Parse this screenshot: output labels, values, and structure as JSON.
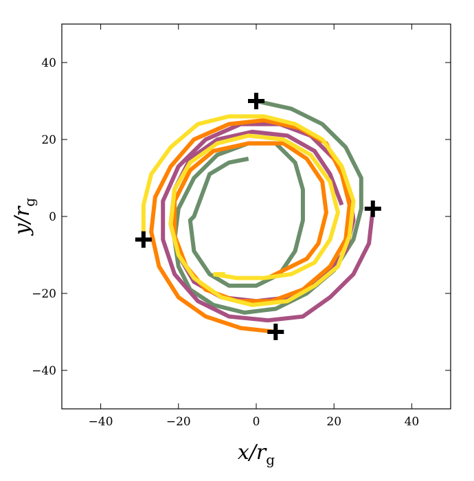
{
  "chart_data": {
    "type": "line",
    "xlabel": {
      "main": "x/r",
      "sub": "g"
    },
    "ylabel": {
      "main": "y/r",
      "sub": "g"
    },
    "xlim": [
      -50,
      50
    ],
    "ylim": [
      -50,
      50
    ],
    "xticks": [
      -40,
      -20,
      0,
      20,
      40
    ],
    "yticks": [
      -40,
      -20,
      0,
      20,
      40
    ],
    "tick_labels": {
      "x": [
        "−40",
        "−20",
        "0",
        "20",
        "40"
      ],
      "y": [
        "−40",
        "−20",
        "0",
        "20",
        "40"
      ]
    },
    "grid": false,
    "legend": false,
    "series": [
      {
        "color": "#6b8e6b",
        "points": [
          [
            0,
            30
          ],
          [
            9,
            28
          ],
          [
            17,
            24
          ],
          [
            23,
            18
          ],
          [
            27,
            10
          ],
          [
            27,
            2
          ],
          [
            25,
            -6
          ],
          [
            20,
            -14
          ],
          [
            13,
            -20
          ],
          [
            5,
            -24
          ],
          [
            -3,
            -25
          ],
          [
            -11,
            -23
          ],
          [
            -17,
            -19
          ],
          [
            -20,
            -13
          ],
          [
            -21,
            -6
          ],
          [
            -20,
            2
          ],
          [
            -16,
            10
          ],
          [
            -10,
            16
          ],
          [
            -2,
            19
          ],
          [
            5,
            19
          ],
          [
            10,
            14
          ],
          [
            12,
            7
          ],
          [
            12,
            -1
          ],
          [
            10,
            -9
          ],
          [
            6,
            -15
          ],
          [
            0,
            -18
          ],
          [
            -7,
            -18
          ],
          [
            -12,
            -15
          ],
          [
            -16,
            -9
          ],
          [
            -17,
            -1
          ],
          [
            -16,
            0
          ],
          [
            -12,
            11
          ],
          [
            -7,
            14
          ],
          [
            -2,
            15
          ]
        ]
      },
      {
        "color": "#a85182",
        "points": [
          [
            30,
            2
          ],
          [
            29,
            -7
          ],
          [
            25,
            -15
          ],
          [
            19,
            -21
          ],
          [
            12,
            -26
          ],
          [
            3,
            -27
          ],
          [
            -7,
            -26
          ],
          [
            -15,
            -22
          ],
          [
            -21,
            -15
          ],
          [
            -24,
            -6
          ],
          [
            -24,
            4
          ],
          [
            -20,
            13
          ],
          [
            -13,
            20
          ],
          [
            -4,
            24
          ],
          [
            6,
            24
          ],
          [
            14,
            21
          ],
          [
            20,
            15
          ],
          [
            24,
            7
          ],
          [
            25,
            -1
          ],
          [
            23,
            -9
          ],
          [
            17,
            -16
          ],
          [
            9,
            -21
          ],
          [
            0,
            -22
          ],
          [
            -9,
            -21
          ],
          [
            -16,
            -17
          ],
          [
            -20,
            -10
          ],
          [
            -22,
            -2
          ],
          [
            -21,
            7
          ],
          [
            -17,
            15
          ],
          [
            -10,
            20
          ],
          [
            -1,
            22
          ],
          [
            8,
            21
          ],
          [
            15,
            17
          ],
          [
            19,
            11
          ],
          [
            22,
            3
          ]
        ]
      },
      {
        "color": "#ff8200",
        "points": [
          [
            5,
            -30
          ],
          [
            -4,
            -29
          ],
          [
            -13,
            -26
          ],
          [
            -20,
            -21
          ],
          [
            -25,
            -13
          ],
          [
            -27,
            -4
          ],
          [
            -26,
            5
          ],
          [
            -22,
            13
          ],
          [
            -16,
            20
          ],
          [
            -7,
            24
          ],
          [
            2,
            25
          ],
          [
            11,
            23
          ],
          [
            18,
            19
          ],
          [
            22,
            11
          ],
          [
            24,
            3
          ],
          [
            23,
            -6
          ],
          [
            19,
            -13
          ],
          [
            12,
            -19
          ],
          [
            4,
            -22
          ],
          [
            -5,
            -22
          ],
          [
            -13,
            -19
          ],
          [
            -18,
            -13
          ],
          [
            -21,
            -5
          ],
          [
            -21,
            4
          ],
          [
            -17,
            12
          ],
          [
            -11,
            17
          ],
          [
            -2,
            19
          ],
          [
            7,
            19
          ],
          [
            13,
            15
          ],
          [
            17,
            9
          ],
          [
            18,
            1
          ],
          [
            16,
            -7
          ],
          [
            13,
            -11
          ],
          [
            3,
            -16
          ]
        ]
      },
      {
        "color": "#fde02a",
        "points": [
          [
            -29,
            -6
          ],
          [
            -29,
            3
          ],
          [
            -27,
            11
          ],
          [
            -22,
            18
          ],
          [
            -15,
            24
          ],
          [
            -7,
            26
          ],
          [
            2,
            26
          ],
          [
            10,
            24
          ],
          [
            17,
            20
          ],
          [
            22,
            13
          ],
          [
            25,
            4
          ],
          [
            24,
            -5
          ],
          [
            21,
            -13
          ],
          [
            15,
            -18
          ],
          [
            8,
            -22
          ],
          [
            -1,
            -23
          ],
          [
            -9,
            -21
          ],
          [
            -16,
            -16
          ],
          [
            -20,
            -10
          ],
          [
            -22,
            -2
          ],
          [
            -21,
            7
          ],
          [
            -17,
            14
          ],
          [
            -10,
            19
          ],
          [
            -2,
            21
          ],
          [
            7,
            20
          ],
          [
            14,
            16
          ],
          [
            19,
            9
          ],
          [
            21,
            1
          ],
          [
            19,
            -6
          ],
          [
            15,
            -12
          ],
          [
            9,
            -15
          ],
          [
            2,
            -16
          ],
          [
            -5,
            -16
          ],
          [
            -11,
            -15
          ],
          [
            -8,
            -15
          ]
        ]
      }
    ],
    "markers": [
      {
        "symbol": "plus",
        "x": 0,
        "y": 30
      },
      {
        "symbol": "plus",
        "x": 30,
        "y": 2
      },
      {
        "symbol": "plus",
        "x": 5,
        "y": -30
      },
      {
        "symbol": "plus",
        "x": -29,
        "y": -6
      }
    ]
  }
}
